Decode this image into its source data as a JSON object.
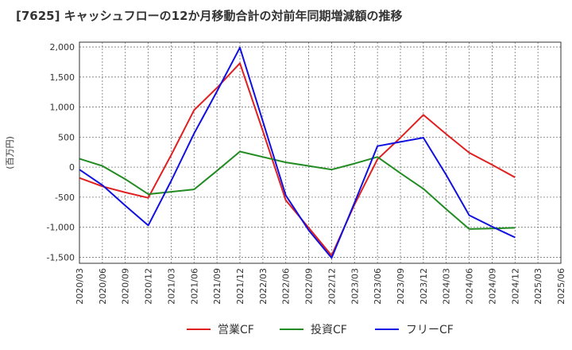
{
  "chart_data": {
    "type": "line",
    "title": "[7625]  キャッシュフローの12か月移動合計の対前年同期増減額の推移",
    "ylabel": "(百万円)",
    "xlabel": "",
    "categories": [
      "2020/03",
      "2020/06",
      "2020/09",
      "2020/12",
      "2021/03",
      "2021/06",
      "2021/09",
      "2021/12",
      "2022/03",
      "2022/06",
      "2022/09",
      "2022/12",
      "2023/03",
      "2023/06",
      "2023/09",
      "2023/12",
      "2024/03",
      "2024/06",
      "2024/09",
      "2024/12",
      "2025/03",
      "2025/06"
    ],
    "y_ticks": [
      "2,000",
      "1,500",
      "1,000",
      "500",
      "0",
      "-500",
      "-1,000",
      "-1,500"
    ],
    "ylim": [
      -1600,
      2080
    ],
    "grid": true,
    "legend_position": "bottom",
    "series": [
      {
        "name": "営業CF",
        "color": "#e02020",
        "values": [
          -180,
          -320,
          -420,
          -510,
          200,
          950,
          1320,
          1730,
          600,
          -550,
          -1010,
          -1470,
          -620,
          130,
          490,
          870,
          550,
          240,
          40,
          -170,
          null,
          null
        ]
      },
      {
        "name": "投資CF",
        "color": "#228b22",
        "values": [
          140,
          20,
          -200,
          -450,
          -410,
          -370,
          -60,
          260,
          170,
          80,
          20,
          -40,
          60,
          170,
          -100,
          -360,
          -700,
          -1030,
          -1020,
          -1010,
          null,
          null
        ]
      },
      {
        "name": "フリーCF",
        "color": "#1010e0",
        "values": [
          -40,
          -300,
          -640,
          -970,
          -230,
          560,
          1260,
          1990,
          760,
          -470,
          -1050,
          -1510,
          -590,
          350,
          420,
          490,
          -130,
          -800,
          -990,
          -1170,
          null,
          null
        ]
      }
    ]
  }
}
